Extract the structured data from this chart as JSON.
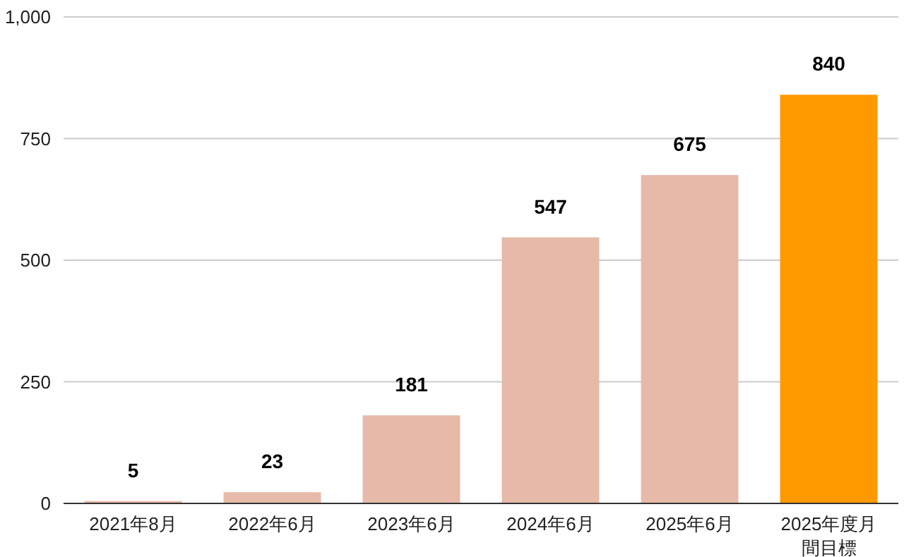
{
  "chart_data": {
    "type": "bar",
    "categories": [
      "2021年8月",
      "2022年6月",
      "2023年6月",
      "2024年6月",
      "2025年6月",
      "2025年度月間目標"
    ],
    "values": [
      5,
      23,
      181,
      547,
      675,
      840
    ],
    "colors": [
      "#e6b9a9",
      "#e6b9a9",
      "#e6b9a9",
      "#e6b9a9",
      "#e6b9a9",
      "#ff9900"
    ],
    "ylim": [
      0,
      1000
    ],
    "yticks": [
      0,
      250,
      500,
      750,
      {
        "value": 1000,
        "label": "1,000"
      }
    ],
    "grid": "y",
    "data_labels": true
  }
}
